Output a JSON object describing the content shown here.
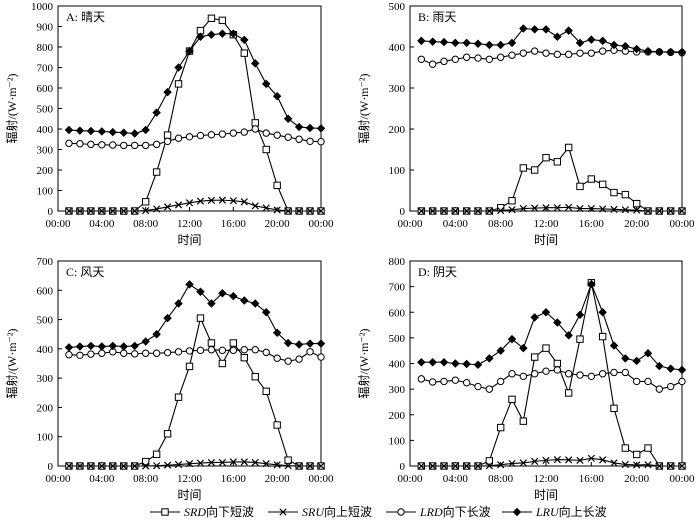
{
  "chart_data": {
    "x_ticks": [
      "00:00",
      "04:00",
      "08:00",
      "12:00",
      "16:00",
      "20:00",
      "00:00"
    ],
    "x_hours": [
      1,
      2,
      3,
      4,
      5,
      6,
      7,
      8,
      9,
      10,
      11,
      12,
      13,
      14,
      15,
      16,
      17,
      18,
      19,
      20,
      21,
      22,
      23,
      24
    ],
    "legend": [
      {
        "key": "SRD",
        "label": "向下短波",
        "marker": "square"
      },
      {
        "key": "SRU",
        "label": "向上短波",
        "marker": "cross"
      },
      {
        "key": "LRD",
        "label": "向下长波",
        "marker": "circle"
      },
      {
        "key": "LRU",
        "label": "向上长波",
        "marker": "diamond"
      }
    ],
    "panels": [
      {
        "title": "A: 晴天",
        "ylabel": "辐射/(W·m⁻²)",
        "xlabel": "时间",
        "ylim": [
          0,
          1000
        ],
        "yticks": [
          0,
          100,
          200,
          300,
          400,
          500,
          600,
          700,
          800,
          900,
          1000
        ],
        "series": {
          "SRD": [
            0,
            0,
            0,
            0,
            0,
            0,
            0,
            45,
            190,
            370,
            620,
            780,
            880,
            940,
            930,
            860,
            770,
            430,
            300,
            125,
            0,
            0,
            0,
            0
          ],
          "SRU": [
            0,
            0,
            0,
            0,
            0,
            0,
            0,
            2,
            10,
            20,
            30,
            40,
            48,
            52,
            53,
            50,
            45,
            25,
            15,
            5,
            0,
            0,
            0,
            0
          ],
          "LRD": [
            330,
            328,
            325,
            323,
            322,
            320,
            320,
            320,
            325,
            340,
            355,
            362,
            368,
            372,
            375,
            380,
            385,
            400,
            380,
            370,
            360,
            350,
            340,
            338
          ],
          "LRU": [
            395,
            392,
            390,
            388,
            385,
            382,
            378,
            395,
            480,
            580,
            700,
            780,
            850,
            860,
            865,
            865,
            835,
            720,
            620,
            560,
            450,
            410,
            405,
            403
          ]
        }
      },
      {
        "title": "B: 雨天",
        "ylabel": "辐射/(W·m⁻²)",
        "xlabel": "时间",
        "ylim": [
          0,
          500
        ],
        "yticks": [
          0,
          100,
          200,
          300,
          400,
          500
        ],
        "series": {
          "SRD": [
            0,
            0,
            0,
            0,
            0,
            0,
            0,
            8,
            25,
            105,
            100,
            130,
            120,
            155,
            60,
            78,
            65,
            45,
            40,
            18,
            0,
            0,
            0,
            0
          ],
          "SRU": [
            0,
            0,
            0,
            0,
            0,
            0,
            0,
            1,
            3,
            6,
            7,
            8,
            8,
            9,
            6,
            6,
            5,
            4,
            3,
            2,
            0,
            0,
            0,
            0
          ],
          "LRD": [
            370,
            358,
            365,
            370,
            375,
            373,
            370,
            375,
            380,
            385,
            390,
            385,
            382,
            382,
            385,
            385,
            390,
            392,
            390,
            388,
            388,
            388,
            387,
            386
          ],
          "LRU": [
            415,
            413,
            412,
            410,
            410,
            408,
            405,
            405,
            410,
            445,
            443,
            443,
            425,
            440,
            410,
            418,
            415,
            405,
            402,
            395,
            390,
            388,
            388,
            388
          ]
        }
      },
      {
        "title": "C: 风天",
        "ylabel": "辐射/(W·m⁻²)",
        "xlabel": "时间",
        "ylim": [
          0,
          700
        ],
        "yticks": [
          0,
          100,
          200,
          300,
          400,
          500,
          600,
          700
        ],
        "series": {
          "SRD": [
            0,
            0,
            0,
            0,
            0,
            0,
            0,
            15,
            40,
            110,
            235,
            340,
            505,
            420,
            350,
            420,
            370,
            305,
            255,
            140,
            20,
            0,
            0,
            0
          ],
          "SRU": [
            0,
            0,
            0,
            0,
            0,
            0,
            0,
            0,
            1,
            3,
            5,
            8,
            10,
            12,
            12,
            14,
            14,
            12,
            8,
            4,
            1,
            0,
            0,
            0
          ],
          "LRD": [
            380,
            378,
            382,
            385,
            390,
            385,
            383,
            385,
            385,
            387,
            390,
            393,
            395,
            397,
            395,
            395,
            397,
            397,
            388,
            368,
            358,
            365,
            390,
            372
          ],
          "LRU": [
            405,
            408,
            410,
            408,
            410,
            408,
            410,
            425,
            450,
            505,
            555,
            620,
            595,
            555,
            590,
            580,
            565,
            555,
            525,
            455,
            420,
            415,
            418,
            418
          ]
        }
      },
      {
        "title": "D: 阴天",
        "ylabel": "辐射/(W·m⁻²)",
        "xlabel": "时间",
        "ylim": [
          0,
          800
        ],
        "yticks": [
          0,
          100,
          200,
          300,
          400,
          500,
          600,
          700,
          800
        ],
        "series": {
          "SRD": [
            0,
            0,
            0,
            0,
            0,
            0,
            20,
            150,
            260,
            175,
            425,
            460,
            400,
            285,
            495,
            715,
            505,
            225,
            70,
            45,
            70,
            0,
            0,
            0
          ],
          "SRU": [
            0,
            0,
            0,
            0,
            0,
            0,
            1,
            5,
            10,
            12,
            18,
            22,
            25,
            24,
            22,
            30,
            24,
            12,
            6,
            4,
            5,
            0,
            0,
            0
          ],
          "LRD": [
            340,
            328,
            330,
            335,
            325,
            310,
            300,
            330,
            360,
            350,
            360,
            370,
            375,
            360,
            355,
            350,
            360,
            365,
            365,
            330,
            330,
            300,
            310,
            330
          ],
          "LRU": [
            405,
            405,
            405,
            400,
            398,
            395,
            420,
            450,
            495,
            460,
            580,
            600,
            560,
            510,
            590,
            710,
            600,
            470,
            420,
            410,
            440,
            390,
            380,
            375
          ]
        }
      }
    ]
  }
}
